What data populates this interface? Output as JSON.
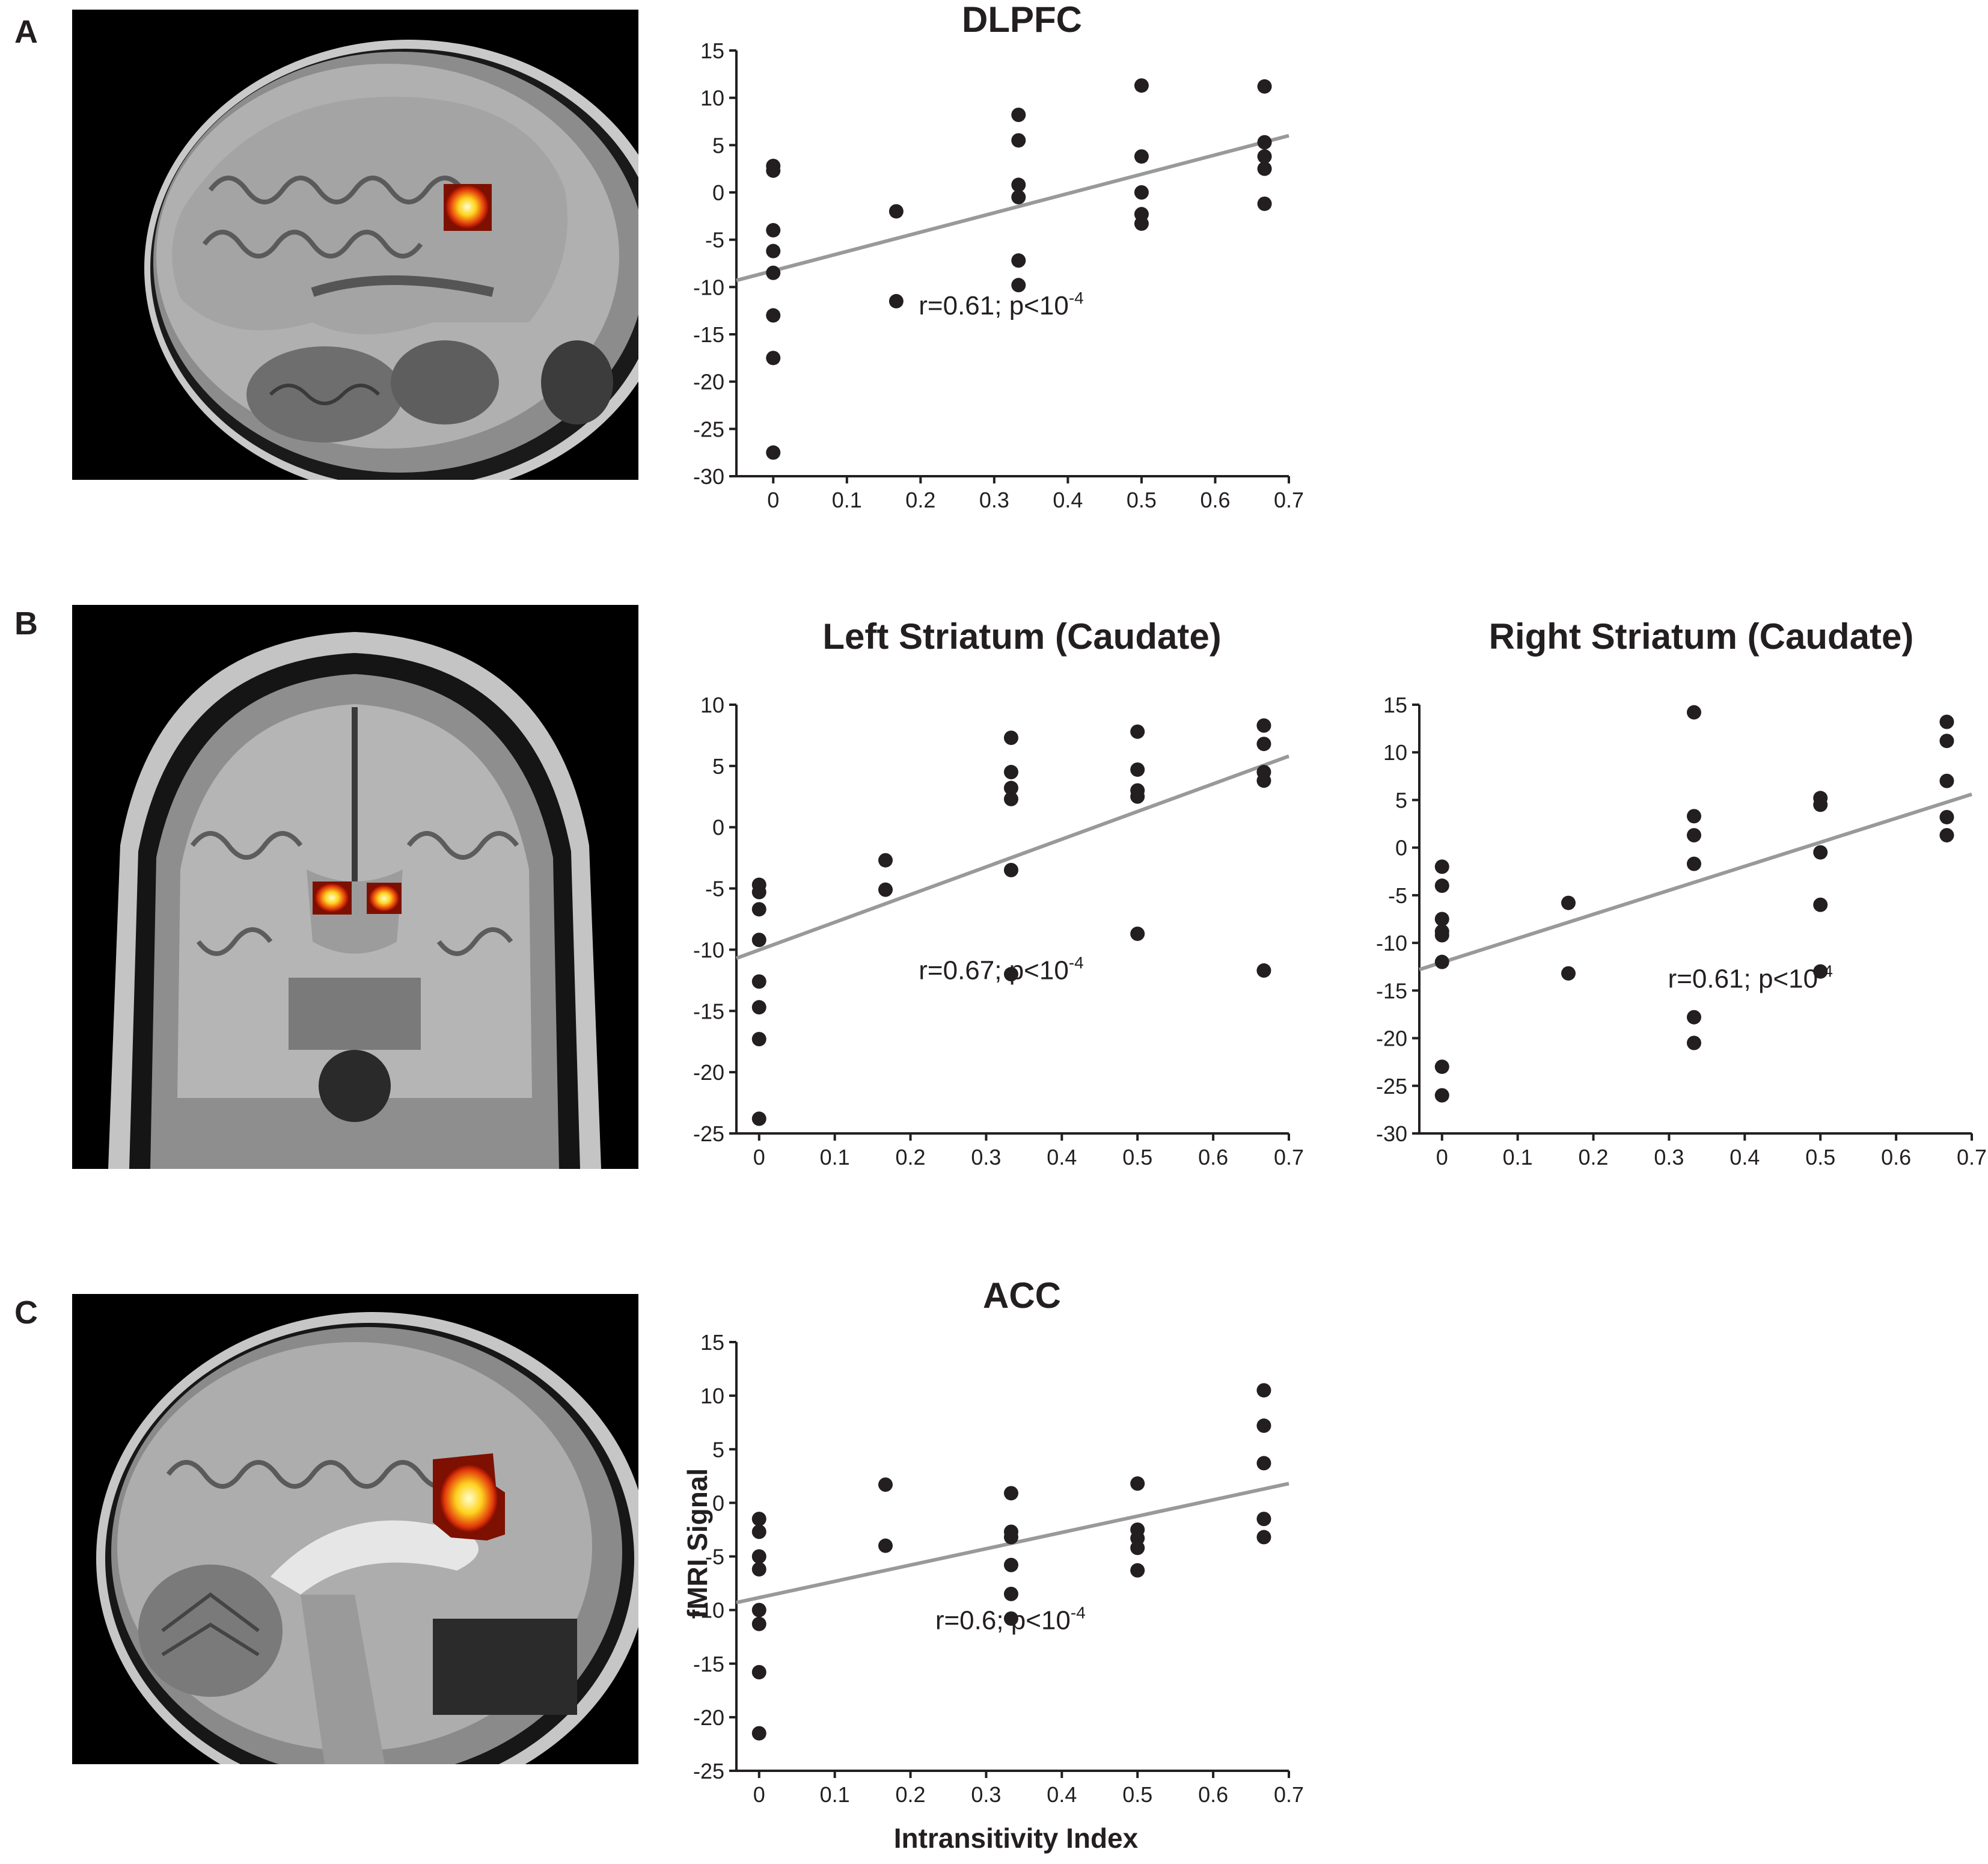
{
  "panels": [
    {
      "letter": "A"
    },
    {
      "letter": "B"
    },
    {
      "letter": "C"
    }
  ],
  "brain_images": [
    {
      "view": "sagittal",
      "activation": "DLPFC"
    },
    {
      "view": "coronal",
      "activation": "bilateral striatum (caudate)"
    },
    {
      "view": "sagittal",
      "activation": "ACC"
    }
  ],
  "axis_labels": {
    "ylabel": "fMRI Signal",
    "xlabel": "Intransitivity Index"
  },
  "chart_data": [
    {
      "type": "scatter",
      "title": "DLPFC",
      "annotation": {
        "text": "r=0.61; p<10",
        "exponent": "-4"
      },
      "xlim": [
        -0.05,
        0.7
      ],
      "ylim": [
        -30,
        15
      ],
      "xticks": [
        0,
        0.1,
        0.2,
        0.3,
        0.4,
        0.5,
        0.6,
        0.7
      ],
      "yticks": [
        15,
        10,
        5,
        0,
        -5,
        -10,
        -15,
        -20,
        -25,
        -30
      ],
      "points": [
        [
          0,
          2.8
        ],
        [
          0,
          2.3
        ],
        [
          0,
          -4
        ],
        [
          0,
          -6.2
        ],
        [
          0,
          -8.5
        ],
        [
          0,
          -13
        ],
        [
          0,
          -17.5
        ],
        [
          0,
          -27.5
        ],
        [
          0.167,
          -2
        ],
        [
          0.167,
          -11.5
        ],
        [
          0.333,
          8.2
        ],
        [
          0.333,
          5.5
        ],
        [
          0.333,
          0.8
        ],
        [
          0.333,
          -0.5
        ],
        [
          0.333,
          -7.2
        ],
        [
          0.333,
          -9.8
        ],
        [
          0.5,
          11.3
        ],
        [
          0.5,
          3.8
        ],
        [
          0.5,
          0
        ],
        [
          0.5,
          -2.3
        ],
        [
          0.5,
          -3.3
        ],
        [
          0.667,
          11.2
        ],
        [
          0.667,
          5.3
        ],
        [
          0.667,
          3.8
        ],
        [
          0.667,
          2.5
        ],
        [
          0.667,
          -1.2
        ]
      ],
      "fit": {
        "x": [
          -0.05,
          0.7
        ],
        "y": [
          -9.3,
          6.0
        ]
      },
      "colors": {
        "points": "#231f20",
        "fit": "#999999"
      }
    },
    {
      "type": "scatter",
      "title": "Left Striatum (Caudate)",
      "annotation": {
        "text": "r=0.67; p<10",
        "exponent": "-4"
      },
      "xlim": [
        -0.03,
        0.7
      ],
      "ylim": [
        -25,
        10
      ],
      "xticks": [
        0,
        0.1,
        0.2,
        0.3,
        0.4,
        0.5,
        0.6,
        0.7
      ],
      "yticks": [
        10,
        5,
        0,
        -5,
        -10,
        -15,
        -20,
        -25
      ],
      "points": [
        [
          0,
          -4.7
        ],
        [
          0,
          -5.3
        ],
        [
          0,
          -6.7
        ],
        [
          0,
          -9.2
        ],
        [
          0,
          -12.6
        ],
        [
          0,
          -14.7
        ],
        [
          0,
          -17.3
        ],
        [
          0,
          -23.8
        ],
        [
          0.167,
          -2.7
        ],
        [
          0.167,
          -5.1
        ],
        [
          0.333,
          7.3
        ],
        [
          0.333,
          4.5
        ],
        [
          0.333,
          3.2
        ],
        [
          0.333,
          2.3
        ],
        [
          0.333,
          -3.5
        ],
        [
          0.333,
          -12
        ],
        [
          0.5,
          7.8
        ],
        [
          0.5,
          4.7
        ],
        [
          0.5,
          3.0
        ],
        [
          0.5,
          2.5
        ],
        [
          0.5,
          -8.7
        ],
        [
          0.667,
          8.3
        ],
        [
          0.667,
          6.8
        ],
        [
          0.667,
          4.5
        ],
        [
          0.667,
          3.8
        ],
        [
          0.667,
          -11.7
        ]
      ],
      "fit": {
        "x": [
          -0.03,
          0.7
        ],
        "y": [
          -10.7,
          5.8
        ]
      },
      "colors": {
        "points": "#231f20",
        "fit": "#999999"
      }
    },
    {
      "type": "scatter",
      "title": "Right Striatum (Caudate)",
      "annotation": {
        "text": "r=0.61; p<10",
        "exponent": "-4"
      },
      "xlim": [
        -0.03,
        0.7
      ],
      "ylim": [
        -30,
        15
      ],
      "xticks": [
        0,
        0.1,
        0.2,
        0.3,
        0.4,
        0.5,
        0.6,
        0.7
      ],
      "yticks": [
        15,
        10,
        5,
        0,
        -5,
        -10,
        -15,
        -20,
        -25,
        -30
      ],
      "points": [
        [
          0,
          -2
        ],
        [
          0,
          -4
        ],
        [
          0,
          -7.5
        ],
        [
          0,
          -8.8
        ],
        [
          0,
          -9.2
        ],
        [
          0,
          -12
        ],
        [
          0,
          -23
        ],
        [
          0,
          -26
        ],
        [
          0.167,
          -5.8
        ],
        [
          0.167,
          -13.2
        ],
        [
          0.333,
          14.2
        ],
        [
          0.333,
          3.3
        ],
        [
          0.333,
          1.3
        ],
        [
          0.333,
          -1.7
        ],
        [
          0.333,
          -17.8
        ],
        [
          0.333,
          -20.5
        ],
        [
          0.5,
          5.2
        ],
        [
          0.5,
          4.5
        ],
        [
          0.5,
          -0.5
        ],
        [
          0.5,
          -6
        ],
        [
          0.5,
          -13
        ],
        [
          0.667,
          13.2
        ],
        [
          0.667,
          11.2
        ],
        [
          0.667,
          7
        ],
        [
          0.667,
          3.2
        ],
        [
          0.667,
          1.3
        ]
      ],
      "fit": {
        "x": [
          -0.03,
          0.7
        ],
        "y": [
          -12.8,
          5.6
        ]
      },
      "colors": {
        "points": "#231f20",
        "fit": "#999999"
      }
    },
    {
      "type": "scatter",
      "title": "ACC",
      "annotation": {
        "text": "r=0.6; p<10",
        "exponent": "-4"
      },
      "xlim": [
        -0.03,
        0.7
      ],
      "ylim": [
        -25,
        15
      ],
      "xticks": [
        0,
        0.1,
        0.2,
        0.3,
        0.4,
        0.5,
        0.6,
        0.7
      ],
      "yticks": [
        15,
        10,
        5,
        0,
        -5,
        -10,
        -15,
        -20,
        -25
      ],
      "points": [
        [
          0,
          -1.5
        ],
        [
          0,
          -2.7
        ],
        [
          0,
          -5
        ],
        [
          0,
          -6.2
        ],
        [
          0,
          -10
        ],
        [
          0,
          -11.3
        ],
        [
          0,
          -15.8
        ],
        [
          0,
          -21.5
        ],
        [
          0.167,
          1.7
        ],
        [
          0.167,
          -4
        ],
        [
          0.333,
          0.9
        ],
        [
          0.333,
          -2.7
        ],
        [
          0.333,
          -3.2
        ],
        [
          0.333,
          -5.8
        ],
        [
          0.333,
          -8.5
        ],
        [
          0.333,
          -10.8
        ],
        [
          0.5,
          1.8
        ],
        [
          0.5,
          -2.5
        ],
        [
          0.5,
          -3.3
        ],
        [
          0.5,
          -4.2
        ],
        [
          0.5,
          -6.3
        ],
        [
          0.667,
          10.5
        ],
        [
          0.667,
          7.2
        ],
        [
          0.667,
          3.7
        ],
        [
          0.667,
          -1.5
        ],
        [
          0.667,
          -3.2
        ]
      ],
      "fit": {
        "x": [
          -0.03,
          0.7
        ],
        "y": [
          -9.3,
          1.8
        ]
      },
      "colors": {
        "points": "#231f20",
        "fit": "#999999"
      }
    }
  ]
}
